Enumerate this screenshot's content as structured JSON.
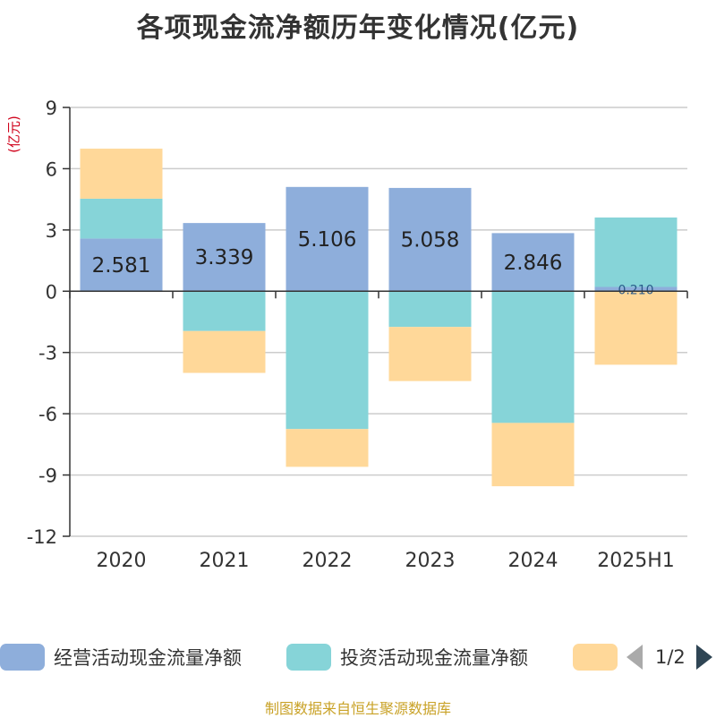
{
  "title": "各项现金流净额历年变化情况(亿元)",
  "unit_label": "(亿元)",
  "source": "制图数据来自恒生聚源数据库",
  "legend": {
    "items": [
      {
        "label": "经营活动现金流量净额",
        "color": "#8eaedb"
      },
      {
        "label": "投资活动现金流量净额",
        "color": "#86d4d8"
      },
      {
        "label": "",
        "color": "#ffd899"
      }
    ],
    "page_text": "1/2"
  },
  "chart_data": {
    "type": "bar",
    "stacked": true,
    "categories": [
      "2020",
      "2021",
      "2022",
      "2023",
      "2024",
      "2025H1"
    ],
    "series": [
      {
        "name": "经营活动现金流量净额",
        "color": "#8eaedb",
        "values": [
          2.581,
          3.339,
          5.106,
          5.058,
          2.846,
          0.21
        ]
      },
      {
        "name": "投资活动现金流量净额",
        "color": "#86d4d8",
        "values": [
          1.95,
          -1.95,
          -6.75,
          -1.75,
          -6.45,
          3.4
        ]
      },
      {
        "color": "#ffd899",
        "values": [
          2.45,
          -2.05,
          -1.85,
          -2.65,
          -3.1,
          -3.6
        ]
      }
    ],
    "data_labels": [
      "2.581",
      "3.339",
      "5.106",
      "5.058",
      "2.846",
      "0.210"
    ],
    "ylim": [
      -12,
      9
    ],
    "yticks": [
      9,
      6,
      3,
      0,
      -3,
      -6,
      -9,
      -12
    ],
    "grid": true,
    "legend_position": "bottom"
  }
}
